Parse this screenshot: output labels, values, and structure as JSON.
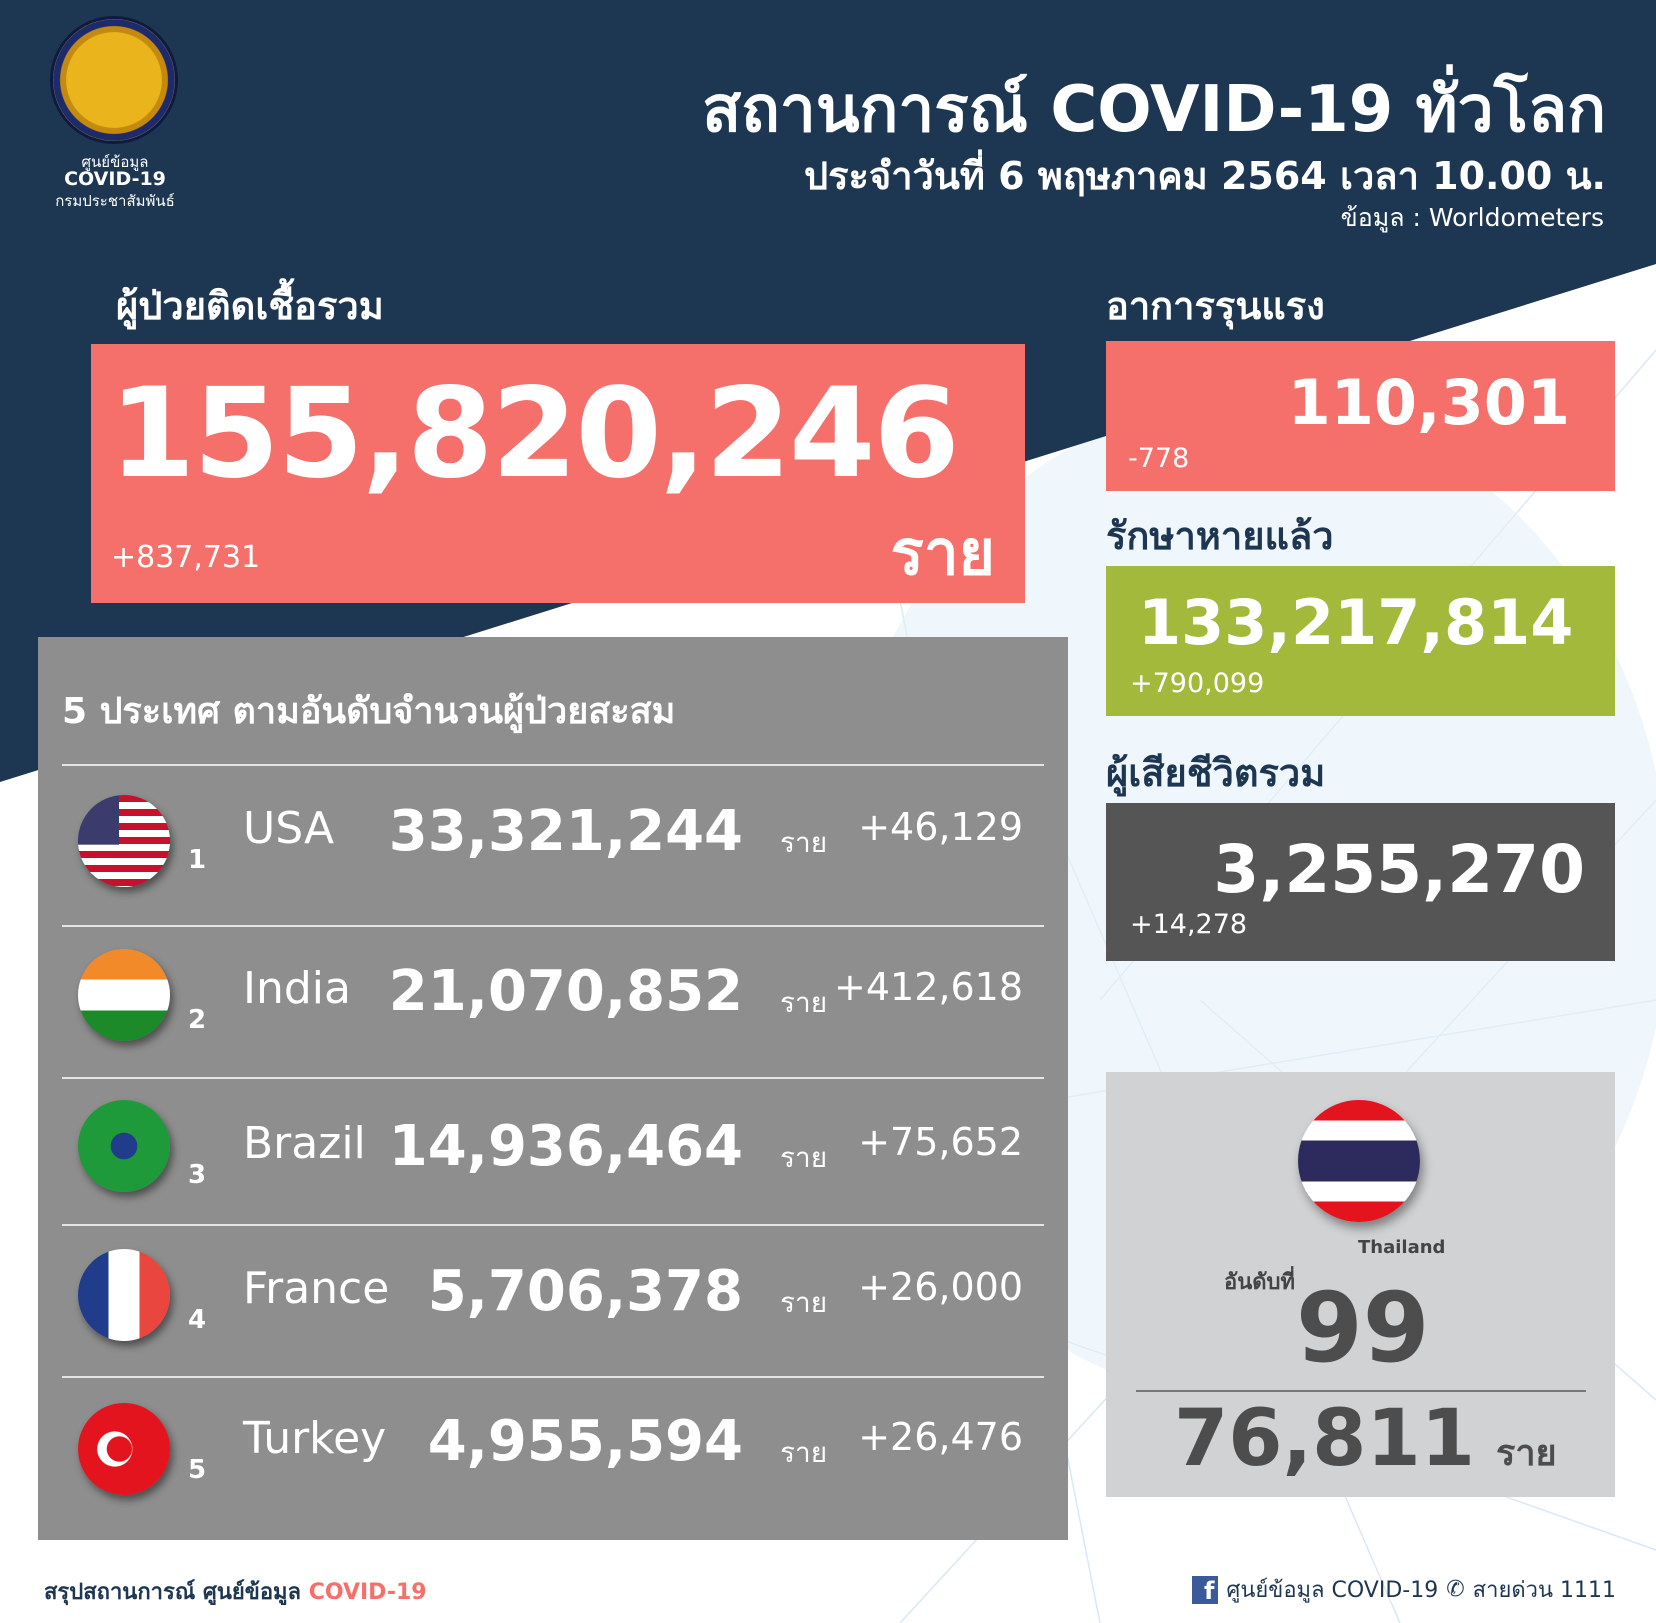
{
  "colors": {
    "navy": "#1d3651",
    "red": "#f5706a",
    "green": "#a2b93c",
    "dark_gray": "#555555",
    "panel_gray": "#8e8e8e",
    "thai_panel": "#d1d2d4"
  },
  "logo": {
    "line1": "ศูนย์ข้อมูล",
    "line2": "COVID-19",
    "line3": "กรมประชาสัมพันธ์"
  },
  "header": {
    "title": "สถานการณ์ COVID-19 ทั่วโลก",
    "subtitle": "ประจำวันที่ 6 พฤษภาคม 2564 เวลา 10.00 น.",
    "source": "ข้อมูล : Worldometers"
  },
  "total_cases": {
    "label": "ผู้ป่วยติดเชื้อรวม",
    "value": "155,820,246",
    "unit": "ราย",
    "delta": "+837,731"
  },
  "critical": {
    "label": "อาการรุนแรง",
    "value": "110,301",
    "delta": "-778"
  },
  "recovered": {
    "label": "รักษาหายแล้ว",
    "value": "133,217,814",
    "delta": "+790,099"
  },
  "deaths": {
    "label": "ผู้เสียชีวิตรวม",
    "value": "3,255,270",
    "delta": "+14,278"
  },
  "top5": {
    "title": "5 ประเทศ ตามอันดับจำนวนผู้ป่วยสะสม",
    "unit": "ราย",
    "rows": [
      {
        "rank": "1",
        "country": "USA",
        "value": "33,321,244",
        "delta": "+46,129"
      },
      {
        "rank": "2",
        "country": "India",
        "value": "21,070,852",
        "delta": "+412,618"
      },
      {
        "rank": "3",
        "country": "Brazil",
        "value": "14,936,464",
        "delta": "+75,652"
      },
      {
        "rank": "4",
        "country": "France",
        "value": "5,706,378",
        "delta": "+26,000"
      },
      {
        "rank": "5",
        "country": "Turkey",
        "value": "4,955,594",
        "delta": "+26,476"
      }
    ]
  },
  "thailand": {
    "name": "Thailand",
    "rank_label": "อันดับที่",
    "rank": "99",
    "value": "76,811",
    "unit": "ราย"
  },
  "footer": {
    "left": "สรุปสถานการณ์ ศูนย์ข้อมูล ",
    "left_accent": "COVID-19",
    "right": "ศูนย์ข้อมูล COVID-19",
    "hotline": "สายด่วน 1111",
    "icons": [
      "facebook-icon",
      "phone-icon"
    ]
  }
}
